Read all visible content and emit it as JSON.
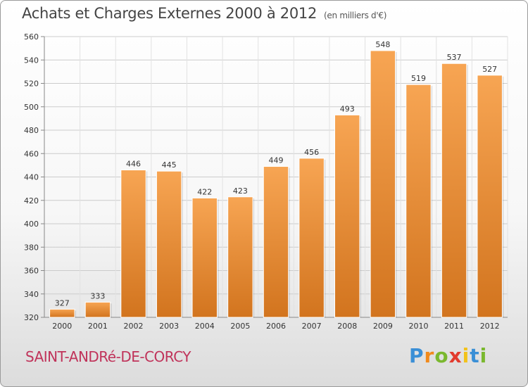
{
  "title": "Achats et Charges Externes 2000 à 2012",
  "unit_note": "(en milliers d'€)",
  "commune": "SAINT-ANDRé-DE-CORCY",
  "logo_text": "Proxiti",
  "colors": {
    "bar_top": "#f7a553",
    "bar_bottom": "#d2741e",
    "grid": "#cccccc",
    "commune": "#c0335a"
  },
  "chart_data": {
    "type": "bar",
    "categories": [
      "2000",
      "2001",
      "2002",
      "2003",
      "2004",
      "2005",
      "2006",
      "2007",
      "2008",
      "2009",
      "2010",
      "2011",
      "2012"
    ],
    "values": [
      327,
      333,
      446,
      445,
      422,
      423,
      449,
      456,
      493,
      548,
      519,
      537,
      527
    ],
    "title": "Achats et Charges Externes 2000 à 2012",
    "ylim": [
      320,
      560
    ],
    "yticks": [
      320,
      340,
      360,
      380,
      400,
      420,
      440,
      460,
      480,
      500,
      520,
      540,
      560
    ],
    "grid": true
  }
}
